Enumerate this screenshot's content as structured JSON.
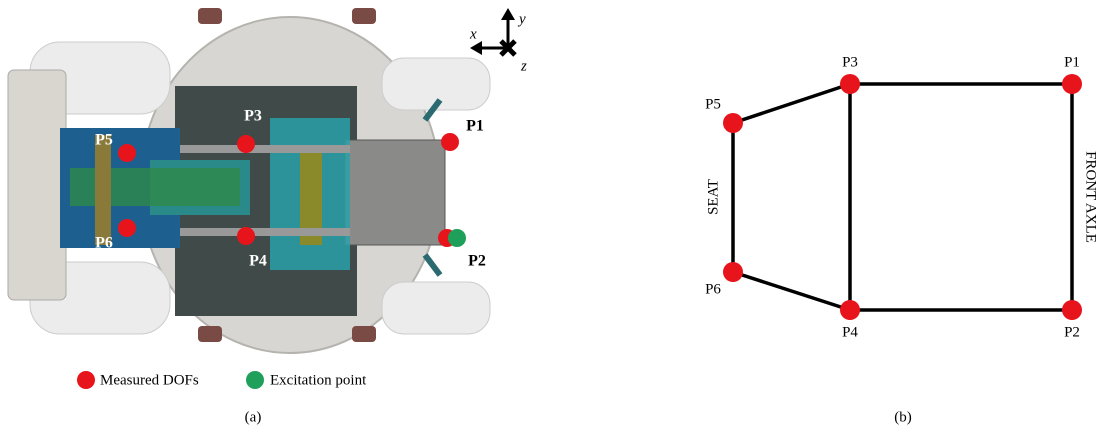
{
  "panel_a": {
    "points": [
      {
        "label": "P1"
      },
      {
        "label": "P2"
      },
      {
        "label": "P3"
      },
      {
        "label": "P4"
      },
      {
        "label": "P5"
      },
      {
        "label": "P6"
      }
    ],
    "axes": {
      "x": "x",
      "y": "y",
      "z": "z"
    },
    "legend": [
      "Measured DOFs",
      "Excitation point"
    ],
    "caption": "(a)"
  },
  "panel_b": {
    "nodes": [
      {
        "label": "P1"
      },
      {
        "label": "P2"
      },
      {
        "label": "P3"
      },
      {
        "label": "P4"
      },
      {
        "label": "P5"
      },
      {
        "label": "P6"
      }
    ],
    "edge_labels": {
      "seat": "SEAT",
      "front_axle": "FRONT AXLE"
    },
    "caption": "(b)"
  }
}
